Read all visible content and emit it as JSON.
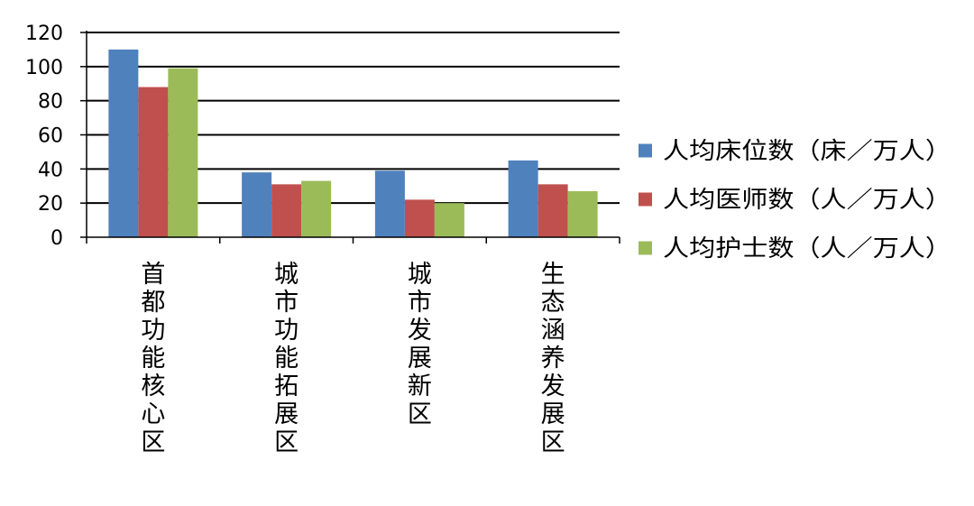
{
  "chart_data": {
    "type": "bar",
    "categories": [
      "首都功能核心区",
      "城市功能拓展区",
      "城市发展新区",
      "生态涵养发展区"
    ],
    "series": [
      {
        "name": "人均床位数（床／万人）",
        "values": [
          110,
          38,
          39,
          45
        ],
        "color": "#4F81BD"
      },
      {
        "name": "人均医师数（人／万人）",
        "values": [
          88,
          31,
          22,
          31
        ],
        "color": "#C0504D"
      },
      {
        "name": "人均护士数（人／万人）",
        "values": [
          99,
          33,
          20,
          27
        ],
        "color": "#9BBB59"
      }
    ],
    "y_ticks": [
      "0",
      "20",
      "40",
      "60",
      "80",
      "100",
      "120"
    ],
    "ylim": [
      0,
      120
    ],
    "grid": true,
    "legend_position": "right"
  }
}
